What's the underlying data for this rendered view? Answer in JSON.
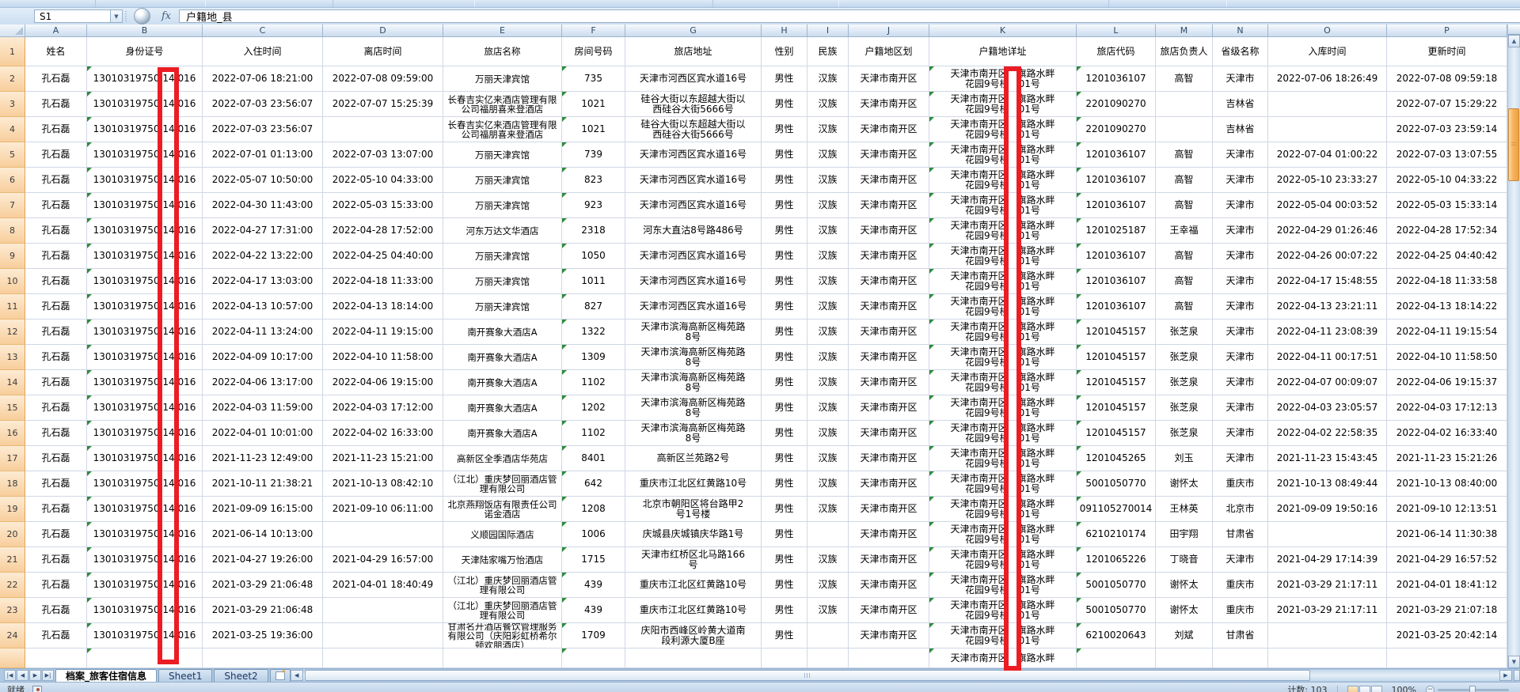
{
  "formula_bar": {
    "name_box": "S1",
    "fx_label": "fx",
    "formula": "户籍地_县"
  },
  "colors": {
    "annotation_red": "#EC1C24",
    "grid_line": "#D0D7E5",
    "row_header_tan": "#F8CE9C",
    "flag_green": "#2E8B3C",
    "vscroll_thumb_orange": "#F6B15C"
  },
  "sheet": {
    "columns": [
      {
        "letter": "A"
      },
      {
        "letter": "B"
      },
      {
        "letter": "C"
      },
      {
        "letter": "D"
      },
      {
        "letter": "E"
      },
      {
        "letter": "F"
      },
      {
        "letter": "G"
      },
      {
        "letter": "H"
      },
      {
        "letter": "I"
      },
      {
        "letter": "J"
      },
      {
        "letter": "K"
      },
      {
        "letter": "L"
      },
      {
        "letter": "M"
      },
      {
        "letter": "N"
      },
      {
        "letter": "O"
      },
      {
        "letter": "P"
      }
    ],
    "rows": [
      {
        "num": "1",
        "cells": [
          "姓名",
          "身份证号",
          "入住时间",
          "离店时间",
          "旅店名称",
          "房间号码",
          "旅店地址",
          "性别",
          "民族",
          "户籍地区划",
          "户籍地详址",
          "旅店代码",
          "旅店负责人",
          "省级名称",
          "入库时间",
          "更新时间"
        ]
      },
      {
        "num": "2",
        "cells": [
          "孔石磊",
          "13010319750 14 016",
          "2022-07-06 18:21:00",
          "2022-07-08 09:59:00",
          "万丽天津宾馆",
          "735",
          "天津市河西区宾水道16号",
          "男性",
          "汉族",
          "天津市南开区",
          "天津市南开区　旗路水畔\n花园9号楼　01号",
          "1201036107",
          "高智",
          "天津市",
          "2022-07-06 18:26:49",
          "2022-07-08 09:59:18"
        ]
      },
      {
        "num": "3",
        "cells": [
          "孔石磊",
          "13010319750 14 016",
          "2022-07-03 23:56:07",
          "2022-07-07 15:25:39",
          "长春吉实亿来酒店管理有限公司福朋喜来登酒店",
          "1021",
          "硅谷大街以东超越大街以西硅谷大街5666号",
          "男性",
          "汉族",
          "天津市南开区",
          "天津市南开区　旗路水畔\n花园9号楼　01号",
          "2201090270",
          "",
          "吉林省",
          "",
          "2022-07-07 15:29:22"
        ]
      },
      {
        "num": "4",
        "cells": [
          "孔石磊",
          "13010319750 14 016",
          "2022-07-03 23:56:07",
          "",
          "长春吉实亿来酒店管理有限公司福朋喜来登酒店",
          "1021",
          "硅谷大街以东超越大街以西硅谷大街5666号",
          "男性",
          "汉族",
          "天津市南开区",
          "天津市南开区　旗路水畔\n花园9号楼　01号",
          "2201090270",
          "",
          "吉林省",
          "",
          "2022-07-03 23:59:14"
        ]
      },
      {
        "num": "5",
        "cells": [
          "孔石磊",
          "13010319750 14 016",
          "2022-07-01 01:13:00",
          "2022-07-03 13:07:00",
          "万丽天津宾馆",
          "739",
          "天津市河西区宾水道16号",
          "男性",
          "汉族",
          "天津市南开区",
          "天津市南开区　旗路水畔\n花园9号楼　01号",
          "1201036107",
          "高智",
          "天津市",
          "2022-07-04 01:00:22",
          "2022-07-03 13:07:55"
        ]
      },
      {
        "num": "6",
        "cells": [
          "孔石磊",
          "13010319750 14 016",
          "2022-05-07 10:50:00",
          "2022-05-10 04:33:00",
          "万丽天津宾馆",
          "823",
          "天津市河西区宾水道16号",
          "男性",
          "汉族",
          "天津市南开区",
          "天津市南开区　旗路水畔\n花园9号楼　01号",
          "1201036107",
          "高智",
          "天津市",
          "2022-05-10 23:33:27",
          "2022-05-10 04:33:22"
        ]
      },
      {
        "num": "7",
        "cells": [
          "孔石磊",
          "13010319750 14 016",
          "2022-04-30 11:43:00",
          "2022-05-03 15:33:00",
          "万丽天津宾馆",
          "923",
          "天津市河西区宾水道16号",
          "男性",
          "汉族",
          "天津市南开区",
          "天津市南开区　旗路水畔\n花园9号楼　01号",
          "1201036107",
          "高智",
          "天津市",
          "2022-05-04 00:03:52",
          "2022-05-03 15:33:14"
        ]
      },
      {
        "num": "8",
        "cells": [
          "孔石磊",
          "13010319750 14 016",
          "2022-04-27 17:31:00",
          "2022-04-28 17:52:00",
          "河东万达文华酒店",
          "2318",
          "河东大直沽8号路486号",
          "男性",
          "汉族",
          "天津市南开区",
          "天津市南开区　旗路水畔\n花园9号楼　01号",
          "1201025187",
          "王幸福",
          "天津市",
          "2022-04-29 01:26:46",
          "2022-04-28 17:52:34"
        ]
      },
      {
        "num": "9",
        "cells": [
          "孔石磊",
          "13010319750 14 016",
          "2022-04-22 13:22:00",
          "2022-04-25 04:40:00",
          "万丽天津宾馆",
          "1050",
          "天津市河西区宾水道16号",
          "男性",
          "汉族",
          "天津市南开区",
          "天津市南开区　旗路水畔\n花园9号楼　01号",
          "1201036107",
          "高智",
          "天津市",
          "2022-04-26 00:07:22",
          "2022-04-25 04:40:42"
        ]
      },
      {
        "num": "10",
        "cells": [
          "孔石磊",
          "13010319750 14 016",
          "2022-04-17 13:03:00",
          "2022-04-18 11:33:00",
          "万丽天津宾馆",
          "1011",
          "天津市河西区宾水道16号",
          "男性",
          "汉族",
          "天津市南开区",
          "天津市南开区　旗路水畔\n花园9号楼　01号",
          "1201036107",
          "高智",
          "天津市",
          "2022-04-17 15:48:55",
          "2022-04-18 11:33:58"
        ]
      },
      {
        "num": "11",
        "cells": [
          "孔石磊",
          "13010319750 14 016",
          "2022-04-13 10:57:00",
          "2022-04-13 18:14:00",
          "万丽天津宾馆",
          "827",
          "天津市河西区宾水道16号",
          "男性",
          "汉族",
          "天津市南开区",
          "天津市南开区　旗路水畔\n花园9号楼　01号",
          "1201036107",
          "高智",
          "天津市",
          "2022-04-13 23:21:11",
          "2022-04-13 18:14:22"
        ]
      },
      {
        "num": "12",
        "cells": [
          "孔石磊",
          "13010319750 14 016",
          "2022-04-11 13:24:00",
          "2022-04-11 19:15:00",
          "南开赛象大酒店A",
          "1322",
          "天津市滨海高新区梅苑路8号",
          "男性",
          "汉族",
          "天津市南开区",
          "天津市南开区　旗路水畔\n花园9号楼　01号",
          "1201045157",
          "张芝泉",
          "天津市",
          "2022-04-11 23:08:39",
          "2022-04-11 19:15:54"
        ]
      },
      {
        "num": "13",
        "cells": [
          "孔石磊",
          "13010319750 14 016",
          "2022-04-09 10:17:00",
          "2022-04-10 11:58:00",
          "南开赛象大酒店A",
          "1309",
          "天津市滨海高新区梅苑路8号",
          "男性",
          "汉族",
          "天津市南开区",
          "天津市南开区　旗路水畔\n花园9号楼　01号",
          "1201045157",
          "张芝泉",
          "天津市",
          "2022-04-11 00:17:51",
          "2022-04-10 11:58:50"
        ]
      },
      {
        "num": "14",
        "cells": [
          "孔石磊",
          "13010319750 14 016",
          "2022-04-06 13:17:00",
          "2022-04-06 19:15:00",
          "南开赛象大酒店A",
          "1102",
          "天津市滨海高新区梅苑路8号",
          "男性",
          "汉族",
          "天津市南开区",
          "天津市南开区　旗路水畔\n花园9号楼　01号",
          "1201045157",
          "张芝泉",
          "天津市",
          "2022-04-07 00:09:07",
          "2022-04-06 19:15:37"
        ]
      },
      {
        "num": "15",
        "cells": [
          "孔石磊",
          "13010319750 14 016",
          "2022-04-03 11:59:00",
          "2022-04-03 17:12:00",
          "南开赛象大酒店A",
          "1202",
          "天津市滨海高新区梅苑路8号",
          "男性",
          "汉族",
          "天津市南开区",
          "天津市南开区　旗路水畔\n花园9号楼　01号",
          "1201045157",
          "张芝泉",
          "天津市",
          "2022-04-03 23:05:57",
          "2022-04-03 17:12:13"
        ]
      },
      {
        "num": "16",
        "cells": [
          "孔石磊",
          "13010319750 14 016",
          "2022-04-01 10:01:00",
          "2022-04-02 16:33:00",
          "南开赛象大酒店A",
          "1102",
          "天津市滨海高新区梅苑路8号",
          "男性",
          "汉族",
          "天津市南开区",
          "天津市南开区　旗路水畔\n花园9号楼　01号",
          "1201045157",
          "张芝泉",
          "天津市",
          "2022-04-02 22:58:35",
          "2022-04-02 16:33:40"
        ]
      },
      {
        "num": "17",
        "cells": [
          "孔石磊",
          "13010319750 14 016",
          "2021-11-23 12:49:00",
          "2021-11-23 15:21:00",
          "高新区全季酒店华苑店",
          "8401",
          "高新区兰苑路2号",
          "男性",
          "汉族",
          "天津市南开区",
          "天津市南开区　旗路水畔\n花园9号楼　01号",
          "1201045265",
          "刘玉",
          "天津市",
          "2021-11-23 15:43:45",
          "2021-11-23 15:21:26"
        ]
      },
      {
        "num": "18",
        "cells": [
          "孔石磊",
          "13010319750 14 016",
          "2021-10-11 21:38:21",
          "2021-10-13 08:42:10",
          "（江北）重庆梦回丽酒店管理有限公司",
          "642",
          "重庆市江北区红黄路10号",
          "男性",
          "汉族",
          "天津市南开区",
          "天津市南开区　旗路水畔\n花园9号楼　01号",
          "5001050770",
          "谢怀太",
          "重庆市",
          "2021-10-13 08:49:44",
          "2021-10-13 08:40:00"
        ]
      },
      {
        "num": "19",
        "cells": [
          "孔石磊",
          "13010319750 14 016",
          "2021-09-09 16:15:00",
          "2021-09-10 06:11:00",
          "北京燕翔饭店有限责任公司诺金酒店",
          "1208",
          "北京市朝阳区将台路甲2号1号楼",
          "男性",
          "汉族",
          "天津市南开区",
          "天津市南开区　旗路水畔\n花园9号楼　01号",
          "091105270014",
          "王林英",
          "北京市",
          "2021-09-09 19:50:16",
          "2021-09-10 12:13:51"
        ]
      },
      {
        "num": "20",
        "cells": [
          "孔石磊",
          "13010319750 14 016",
          "2021-06-14 10:13:00",
          "",
          "义顺园国际酒店",
          "1006",
          "庆城县庆城镇庆华路1号",
          "男性",
          "",
          "天津市南开区",
          "天津市南开区　旗路水畔\n花园9号楼　01号",
          "6210210174",
          "田宇翔",
          "甘肃省",
          "",
          "2021-06-14 11:30:38"
        ]
      },
      {
        "num": "21",
        "cells": [
          "孔石磊",
          "13010319750 14 016",
          "2021-04-27 19:26:00",
          "2021-04-29 16:57:00",
          "天津陆家嘴万怡酒店",
          "1715",
          "天津市红桥区北马路166号",
          "男性",
          "汉族",
          "天津市南开区",
          "天津市南开区　旗路水畔\n花园9号楼　01号",
          "1201065226",
          "丁晓音",
          "天津市",
          "2021-04-29 17:14:39",
          "2021-04-29 16:57:52"
        ]
      },
      {
        "num": "22",
        "cells": [
          "孔石磊",
          "13010319750 14 016",
          "2021-03-29 21:06:48",
          "2021-04-01 18:40:49",
          "（江北）重庆梦回丽酒店管理有限公司",
          "439",
          "重庆市江北区红黄路10号",
          "男性",
          "汉族",
          "天津市南开区",
          "天津市南开区　旗路水畔\n花园9号楼　01号",
          "5001050770",
          "谢怀太",
          "重庆市",
          "2021-03-29 21:17:11",
          "2021-04-01 18:41:12"
        ]
      },
      {
        "num": "23",
        "cells": [
          "孔石磊",
          "13010319750 14 016",
          "2021-03-29 21:06:48",
          "",
          "（江北）重庆梦回丽酒店管理有限公司",
          "439",
          "重庆市江北区红黄路10号",
          "男性",
          "汉族",
          "天津市南开区",
          "天津市南开区　旗路水畔\n花园9号楼　01号",
          "5001050770",
          "谢怀太",
          "重庆市",
          "2021-03-29 21:17:11",
          "2021-03-29 21:07:18"
        ]
      },
      {
        "num": "24",
        "cells": [
          "孔石磊",
          "13010319750 14 016",
          "2021-03-25 19:36:00",
          "",
          "甘肃名开酒店餐饮管理服务有限公司（庆阳彩虹桥希尔顿欢朋酒店）",
          "1709",
          "庆阳市西峰区岭黄大道南段利源大厦B座",
          "男性",
          "",
          "天津市南开区",
          "天津市南开区　旗路水畔\n花园9号楼　01号",
          "6210020643",
          "刘斌",
          "甘肃省",
          "",
          "2021-03-25 20:42:14"
        ]
      }
    ],
    "partial_row": {
      "num": "",
      "cells": [
        "",
        "",
        "",
        "",
        "",
        "",
        "",
        "",
        "",
        "",
        "天津市南开区　旗路水畔",
        "",
        "",
        "",
        "",
        ""
      ]
    }
  },
  "tab_bar": {
    "tabs": [
      {
        "label": "档案_旅客住宿信息",
        "active": true
      },
      {
        "label": "Sheet1",
        "active": false
      },
      {
        "label": "Sheet2",
        "active": false
      }
    ]
  },
  "status_bar": {
    "ready_label": "就绪",
    "count_label": "计数: 103",
    "zoom_label": "100%"
  }
}
